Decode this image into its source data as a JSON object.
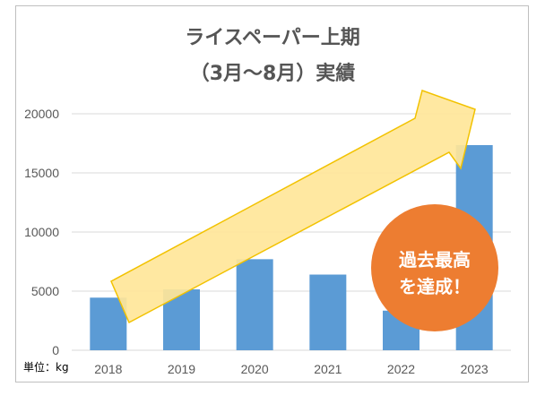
{
  "chart_data": {
    "type": "bar",
    "title": "ライスペーパー上期",
    "subtitle": "（3月～8月）実績",
    "categories": [
      "2018",
      "2019",
      "2020",
      "2021",
      "2022",
      "2023"
    ],
    "values": [
      4450,
      5150,
      7700,
      6400,
      3350,
      17350
    ],
    "ylim": [
      0,
      20000
    ],
    "yticks": [
      "0",
      "5000",
      "10000",
      "15000",
      "20000"
    ],
    "grid": true,
    "unit_label": "単位：kg",
    "annotation": {
      "lines": [
        "過去最高",
        "を達成！"
      ],
      "color": "#ed7d31"
    },
    "colors": {
      "bar": "#5b9bd5",
      "arrow_fill": "#ffe699",
      "arrow_stroke": "#f2c200",
      "grid": "#d9d9d9"
    }
  }
}
